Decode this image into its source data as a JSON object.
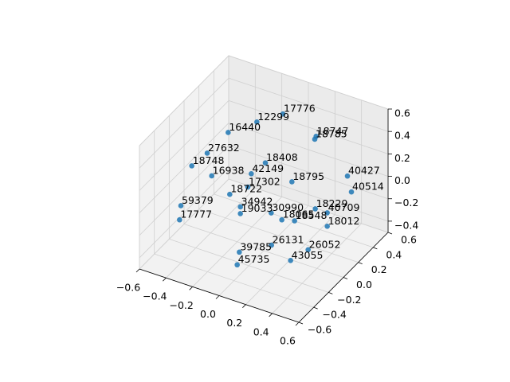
{
  "chart_data": {
    "type": "scatter3d",
    "color": "#1f77b4",
    "grid": true,
    "labels": [
      "17776",
      "12299",
      "18747",
      "18785",
      "16440",
      "27632",
      "18748",
      "18408",
      "42149",
      "16938",
      "40427",
      "18795",
      "17302",
      "40514",
      "18722",
      "59379",
      "34942",
      "19033",
      "30990",
      "18229",
      "40709",
      "18065",
      "18548",
      "18012",
      "17777",
      "26131",
      "39785",
      "26052",
      "43055",
      "45735"
    ],
    "x": [
      -0.08,
      -0.22,
      0.17,
      0.16,
      -0.38,
      -0.37,
      -0.43,
      -0.1,
      -0.15,
      -0.28,
      0.35,
      0.1,
      -0.12,
      0.38,
      -0.2,
      -0.4,
      -0.12,
      -0.12,
      0.0,
      0.22,
      0.31,
      0.08,
      0.12,
      0.31,
      -0.41,
      0.17,
      0.04,
      0.39,
      0.37,
      0.08
    ],
    "y": [
      0.4,
      0.3,
      0.4,
      0.4,
      0.2,
      -0.1,
      -0.2,
      0.2,
      0.1,
      -0.2,
      0.5,
      0.2,
      0.0,
      0.5,
      -0.1,
      -0.4,
      -0.1,
      -0.1,
      0.1,
      0.3,
      0.3,
      0.1,
      0.2,
      0.3,
      -0.4,
      -0.2,
      -0.4,
      -0.1,
      -0.3,
      -0.5
    ],
    "z": [
      0.42,
      0.36,
      0.32,
      0.29,
      0.27,
      0.29,
      0.22,
      0.11,
      0.06,
      0.19,
      -0.03,
      0.02,
      0.02,
      -0.16,
      -0.01,
      0.01,
      -0.09,
      -0.15,
      -0.23,
      -0.24,
      -0.24,
      -0.26,
      -0.32,
      -0.36,
      -0.12,
      -0.25,
      -0.23,
      -0.27,
      -0.24,
      -0.26
    ],
    "xlim": [
      -0.6,
      0.6
    ],
    "ylim": [
      -0.6,
      0.6
    ],
    "zlim": [
      -0.5,
      0.6
    ],
    "xticks": [
      {
        "value": -0.6,
        "label": "−0.6"
      },
      {
        "value": -0.4,
        "label": "−0.4"
      },
      {
        "value": -0.2,
        "label": "−0.2"
      },
      {
        "value": 0,
        "label": "0.0"
      },
      0.2,
      0.4,
      0.6
    ],
    "yticks": [
      {
        "value": -0.6,
        "label": "−0.6"
      },
      {
        "value": -0.4,
        "label": "−0.4"
      },
      {
        "value": -0.2,
        "label": "−0.2"
      },
      {
        "value": 0,
        "label": "0.0"
      },
      0.2,
      0.4,
      0.6
    ],
    "zticks": [
      {
        "value": -0.4,
        "label": "−0.4"
      },
      {
        "value": -0.2,
        "label": "−0.2"
      },
      {
        "value": 0,
        "label": "0.0"
      },
      0.2,
      0.4,
      0.6
    ]
  }
}
